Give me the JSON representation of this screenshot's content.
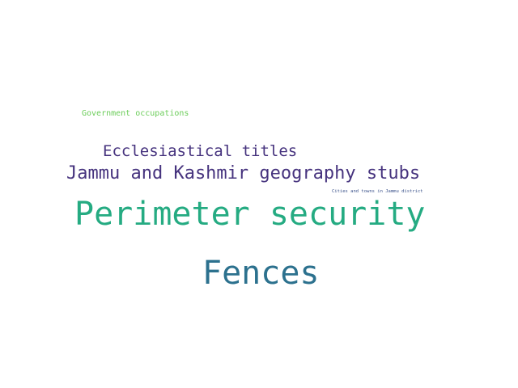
{
  "word_cloud": {
    "words": [
      {
        "id": "government",
        "text": "Government occupations",
        "color": "#6ccd5a"
      },
      {
        "id": "ecclesiastical",
        "text": "Ecclesiastical titles",
        "color": "#46337e"
      },
      {
        "id": "jammu_kashmir",
        "text": "Jammu and Kashmir geography stubs",
        "color": "#46337e"
      },
      {
        "id": "cities_towns",
        "text": "Cities and towns in Jammu district",
        "color": "#3b528b"
      },
      {
        "id": "perimeter",
        "text": "Perimeter security",
        "color": "#25ab82"
      },
      {
        "id": "fences",
        "text": "Fences",
        "color": "#2c718e"
      }
    ]
  }
}
